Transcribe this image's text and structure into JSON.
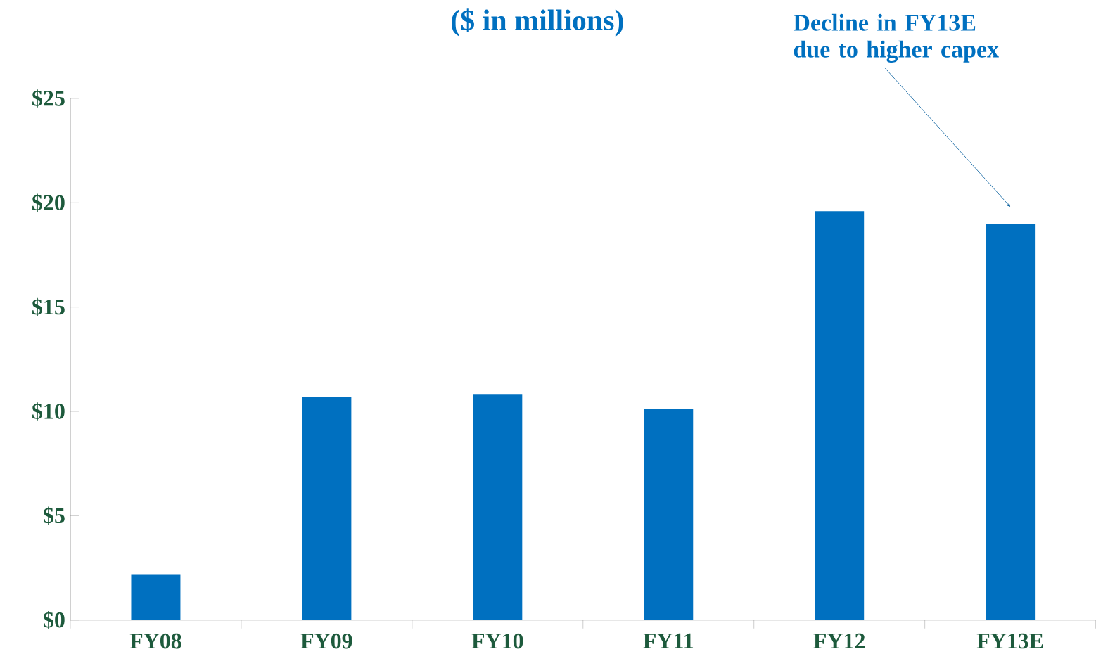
{
  "chart_data": {
    "type": "bar",
    "title": "($ in millions)",
    "categories": [
      "FY08",
      "FY09",
      "FY10",
      "FY11",
      "FY12",
      "FY13E"
    ],
    "values": [
      2.2,
      10.7,
      10.8,
      10.1,
      19.6,
      19.0
    ],
    "color": "#0070c0",
    "ylim": [
      0,
      25
    ],
    "yticks": [
      {
        "value": 0,
        "label": "$0"
      },
      {
        "value": 5,
        "label": "$5"
      },
      {
        "value": 10,
        "label": "$10"
      },
      {
        "value": 15,
        "label": "$15"
      },
      {
        "value": 20,
        "label": "$20"
      },
      {
        "value": 25,
        "label": "$25"
      }
    ],
    "annotations": [
      "Decline in FY13E due to higher capex"
    ]
  }
}
